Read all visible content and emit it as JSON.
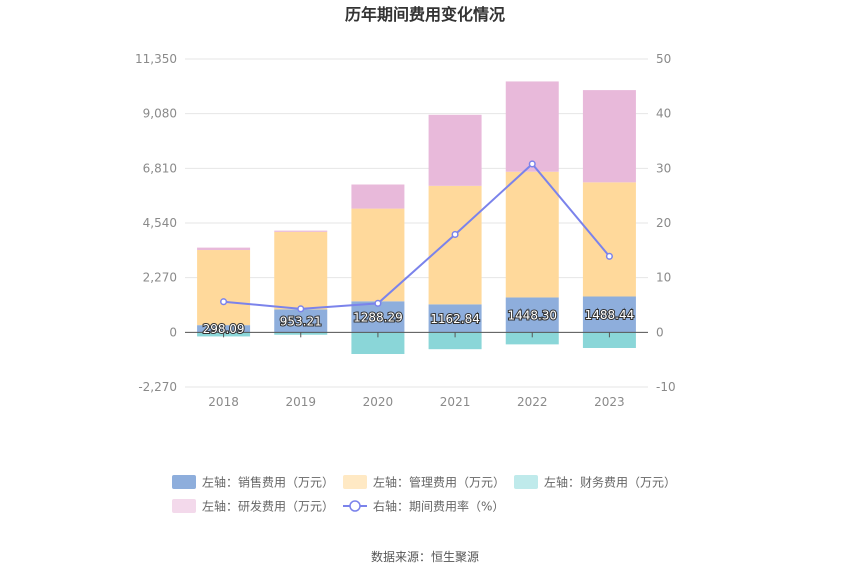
{
  "chart_data": {
    "type": "bar",
    "title": "历年期间费用变化情况",
    "categories": [
      "2018",
      "2019",
      "2020",
      "2021",
      "2022",
      "2023"
    ],
    "left_axis": {
      "min": -2270,
      "max": 11350,
      "ticks": [
        "11,350",
        "9,080",
        "6,810",
        "4,540",
        "2,270",
        "0",
        "-2,270"
      ],
      "tick_values": [
        11350,
        9080,
        6810,
        4540,
        2270,
        0,
        -2270
      ]
    },
    "right_axis": {
      "min": -10,
      "max": 50,
      "ticks": [
        "50",
        "40",
        "30",
        "20",
        "10",
        "0",
        "-10"
      ],
      "tick_values": [
        50,
        40,
        30,
        20,
        10,
        0,
        -10
      ]
    },
    "series": [
      {
        "name": "左轴：销售费用（万元）",
        "axis": "left",
        "kind": "bar",
        "color": "#8eaedc",
        "values": [
          298.09,
          953.21,
          1288.29,
          1162.84,
          1448.3,
          1488.44
        ],
        "labels": [
          "298.09",
          "953.21",
          "1288.29",
          "1162.84",
          "1448.30",
          "1488.44"
        ]
      },
      {
        "name": "左轴：管理费用（万元）",
        "axis": "left",
        "kind": "bar",
        "color": "#ffd99b",
        "values": [
          3120,
          3220,
          3850,
          4920,
          5220,
          4740
        ]
      },
      {
        "name": "左轴：财务费用（万元）",
        "axis": "left",
        "kind": "bar",
        "color": "#8ad6d8",
        "values": [
          -170,
          -100,
          -900,
          -700,
          -500,
          -650
        ]
      },
      {
        "name": "左轴：研发费用（万元）",
        "axis": "left",
        "kind": "bar",
        "color": "#e8b9da",
        "values": [
          100,
          50,
          1000,
          2950,
          3750,
          3830
        ]
      },
      {
        "name": "右轴：期间费用率（%）",
        "axis": "right",
        "kind": "line",
        "color": "#7b83eb",
        "values": [
          5.6,
          4.3,
          5.3,
          17.9,
          30.8,
          13.9
        ]
      }
    ],
    "legend_position": "bottom",
    "grid": true
  },
  "source": "数据来源：恒生聚源"
}
